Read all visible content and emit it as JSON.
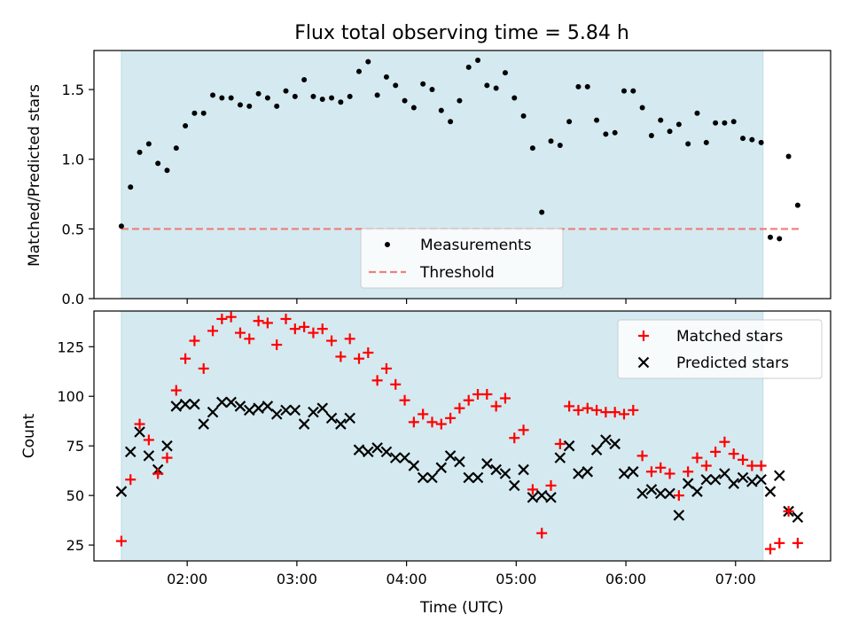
{
  "colors": {
    "shade": "#d4eaf0",
    "measurement": "#000000",
    "threshold": "#f08080",
    "matched": "#ff0000",
    "predicted": "#000000"
  },
  "chart_data": [
    {
      "type": "scatter",
      "title": "Flux total observing time = 5.84 h",
      "ylabel": "Matched/Predicted stars",
      "xlim": [
        "01:09",
        "07:52"
      ],
      "ylim": [
        0,
        1.78
      ],
      "yticks": [
        "0.0",
        "0.5",
        "1.0",
        "1.5"
      ],
      "shaded_interval": [
        "01:24",
        "07:15"
      ],
      "legend": {
        "position": "lower center",
        "entries": [
          "Measurements",
          "Threshold"
        ]
      },
      "threshold": {
        "name": "Threshold",
        "y": 0.5,
        "x": [
          "01:24",
          "07:35"
        ]
      },
      "series": [
        {
          "name": "Measurements",
          "points": [
            [
              "01:24",
              0.52
            ],
            [
              "01:29",
              0.8
            ],
            [
              "01:34",
              1.05
            ],
            [
              "01:39",
              1.11
            ],
            [
              "01:44",
              0.97
            ],
            [
              "01:49",
              0.92
            ],
            [
              "01:54",
              1.08
            ],
            [
              "01:59",
              1.24
            ],
            [
              "02:04",
              1.33
            ],
            [
              "02:09",
              1.33
            ],
            [
              "02:14",
              1.46
            ],
            [
              "02:19",
              1.44
            ],
            [
              "02:24",
              1.44
            ],
            [
              "02:29",
              1.39
            ],
            [
              "02:34",
              1.38
            ],
            [
              "02:39",
              1.47
            ],
            [
              "02:44",
              1.44
            ],
            [
              "02:49",
              1.38
            ],
            [
              "02:54",
              1.49
            ],
            [
              "02:59",
              1.45
            ],
            [
              "03:04",
              1.57
            ],
            [
              "03:09",
              1.45
            ],
            [
              "03:14",
              1.43
            ],
            [
              "03:19",
              1.44
            ],
            [
              "03:24",
              1.41
            ],
            [
              "03:29",
              1.45
            ],
            [
              "03:34",
              1.63
            ],
            [
              "03:39",
              1.7
            ],
            [
              "03:44",
              1.46
            ],
            [
              "03:49",
              1.59
            ],
            [
              "03:54",
              1.53
            ],
            [
              "03:59",
              1.42
            ],
            [
              "04:04",
              1.37
            ],
            [
              "04:09",
              1.54
            ],
            [
              "04:14",
              1.5
            ],
            [
              "04:19",
              1.35
            ],
            [
              "04:24",
              1.27
            ],
            [
              "04:29",
              1.42
            ],
            [
              "04:34",
              1.66
            ],
            [
              "04:39",
              1.71
            ],
            [
              "04:44",
              1.53
            ],
            [
              "04:49",
              1.51
            ],
            [
              "04:54",
              1.62
            ],
            [
              "04:59",
              1.44
            ],
            [
              "05:04",
              1.31
            ],
            [
              "05:09",
              1.08
            ],
            [
              "05:14",
              0.62
            ],
            [
              "05:19",
              1.13
            ],
            [
              "05:24",
              1.1
            ],
            [
              "05:29",
              1.27
            ],
            [
              "05:34",
              1.52
            ],
            [
              "05:39",
              1.52
            ],
            [
              "05:44",
              1.28
            ],
            [
              "05:49",
              1.18
            ],
            [
              "05:54",
              1.19
            ],
            [
              "05:59",
              1.49
            ],
            [
              "06:04",
              1.49
            ],
            [
              "06:09",
              1.37
            ],
            [
              "06:14",
              1.17
            ],
            [
              "06:19",
              1.28
            ],
            [
              "06:24",
              1.2
            ],
            [
              "06:29",
              1.25
            ],
            [
              "06:34",
              1.11
            ],
            [
              "06:39",
              1.33
            ],
            [
              "06:44",
              1.12
            ],
            [
              "06:49",
              1.26
            ],
            [
              "06:54",
              1.26
            ],
            [
              "06:59",
              1.27
            ],
            [
              "07:04",
              1.15
            ],
            [
              "07:09",
              1.14
            ],
            [
              "07:14",
              1.12
            ],
            [
              "07:19",
              0.44
            ],
            [
              "07:24",
              0.43
            ],
            [
              "07:29",
              1.02
            ],
            [
              "07:34",
              0.67
            ]
          ]
        }
      ]
    },
    {
      "type": "scatter",
      "xlabel": "Time (UTC)",
      "ylabel": "Count",
      "xlim": [
        "01:09",
        "07:52"
      ],
      "ylim": [
        17,
        143
      ],
      "xticks": [
        "02:00",
        "03:00",
        "04:00",
        "05:00",
        "06:00",
        "07:00"
      ],
      "yticks": [
        25,
        50,
        75,
        100,
        125
      ],
      "shaded_interval": [
        "01:24",
        "07:15"
      ],
      "legend": {
        "position": "upper right",
        "entries": [
          "Matched stars",
          "Predicted stars"
        ]
      },
      "series": [
        {
          "name": "Matched stars",
          "marker": "+",
          "points": [
            [
              "01:24",
              27
            ],
            [
              "01:29",
              58
            ],
            [
              "01:34",
              86
            ],
            [
              "01:39",
              78
            ],
            [
              "01:44",
              61
            ],
            [
              "01:49",
              69
            ],
            [
              "01:54",
              103
            ],
            [
              "01:59",
              119
            ],
            [
              "02:04",
              128
            ],
            [
              "02:09",
              114
            ],
            [
              "02:14",
              133
            ],
            [
              "02:19",
              139
            ],
            [
              "02:24",
              140
            ],
            [
              "02:29",
              132
            ],
            [
              "02:34",
              129
            ],
            [
              "02:39",
              138
            ],
            [
              "02:44",
              137
            ],
            [
              "02:49",
              126
            ],
            [
              "02:54",
              139
            ],
            [
              "02:59",
              134
            ],
            [
              "03:04",
              135
            ],
            [
              "03:09",
              132
            ],
            [
              "03:14",
              134
            ],
            [
              "03:19",
              128
            ],
            [
              "03:24",
              120
            ],
            [
              "03:29",
              129
            ],
            [
              "03:34",
              119
            ],
            [
              "03:39",
              122
            ],
            [
              "03:44",
              108
            ],
            [
              "03:49",
              114
            ],
            [
              "03:54",
              106
            ],
            [
              "03:59",
              98
            ],
            [
              "04:04",
              87
            ],
            [
              "04:09",
              91
            ],
            [
              "04:14",
              87
            ],
            [
              "04:19",
              86
            ],
            [
              "04:24",
              89
            ],
            [
              "04:29",
              94
            ],
            [
              "04:34",
              98
            ],
            [
              "04:39",
              101
            ],
            [
              "04:44",
              101
            ],
            [
              "04:49",
              95
            ],
            [
              "04:54",
              99
            ],
            [
              "04:59",
              79
            ],
            [
              "05:04",
              83
            ],
            [
              "05:09",
              53
            ],
            [
              "05:14",
              31
            ],
            [
              "05:19",
              55
            ],
            [
              "05:24",
              76
            ],
            [
              "05:29",
              95
            ],
            [
              "05:34",
              93
            ],
            [
              "05:39",
              94
            ],
            [
              "05:44",
              93
            ],
            [
              "05:49",
              92
            ],
            [
              "05:54",
              92
            ],
            [
              "05:59",
              91
            ],
            [
              "06:04",
              93
            ],
            [
              "06:09",
              70
            ],
            [
              "06:14",
              62
            ],
            [
              "06:19",
              64
            ],
            [
              "06:24",
              61
            ],
            [
              "06:29",
              50
            ],
            [
              "06:34",
              62
            ],
            [
              "06:39",
              69
            ],
            [
              "06:44",
              65
            ],
            [
              "06:49",
              72
            ],
            [
              "06:54",
              77
            ],
            [
              "06:59",
              71
            ],
            [
              "07:04",
              68
            ],
            [
              "07:09",
              65
            ],
            [
              "07:14",
              65
            ],
            [
              "07:19",
              23
            ],
            [
              "07:24",
              26
            ],
            [
              "07:29",
              42
            ],
            [
              "07:34",
              26
            ]
          ]
        },
        {
          "name": "Predicted stars",
          "marker": "x",
          "points": [
            [
              "01:24",
              52
            ],
            [
              "01:29",
              72
            ],
            [
              "01:34",
              82
            ],
            [
              "01:39",
              70
            ],
            [
              "01:44",
              63
            ],
            [
              "01:49",
              75
            ],
            [
              "01:54",
              95
            ],
            [
              "01:59",
              96
            ],
            [
              "02:04",
              96
            ],
            [
              "02:09",
              86
            ],
            [
              "02:14",
              92
            ],
            [
              "02:19",
              97
            ],
            [
              "02:24",
              97
            ],
            [
              "02:29",
              95
            ],
            [
              "02:34",
              93
            ],
            [
              "02:39",
              94
            ],
            [
              "02:44",
              95
            ],
            [
              "02:49",
              91
            ],
            [
              "02:54",
              93
            ],
            [
              "02:59",
              93
            ],
            [
              "03:04",
              86
            ],
            [
              "03:09",
              92
            ],
            [
              "03:14",
              94
            ],
            [
              "03:19",
              89
            ],
            [
              "03:24",
              86
            ],
            [
              "03:29",
              89
            ],
            [
              "03:34",
              73
            ],
            [
              "03:39",
              72
            ],
            [
              "03:44",
              74
            ],
            [
              "03:49",
              72
            ],
            [
              "03:54",
              69
            ],
            [
              "03:59",
              69
            ],
            [
              "04:04",
              65
            ],
            [
              "04:09",
              59
            ],
            [
              "04:14",
              59
            ],
            [
              "04:19",
              64
            ],
            [
              "04:24",
              70
            ],
            [
              "04:29",
              67
            ],
            [
              "04:34",
              59
            ],
            [
              "04:39",
              59
            ],
            [
              "04:44",
              66
            ],
            [
              "04:49",
              63
            ],
            [
              "04:54",
              61
            ],
            [
              "04:59",
              55
            ],
            [
              "05:04",
              63
            ],
            [
              "05:09",
              49
            ],
            [
              "05:14",
              50
            ],
            [
              "05:19",
              49
            ],
            [
              "05:24",
              69
            ],
            [
              "05:29",
              75
            ],
            [
              "05:34",
              61
            ],
            [
              "05:39",
              62
            ],
            [
              "05:44",
              73
            ],
            [
              "05:49",
              78
            ],
            [
              "05:54",
              76
            ],
            [
              "05:59",
              61
            ],
            [
              "06:04",
              62
            ],
            [
              "06:09",
              51
            ],
            [
              "06:14",
              53
            ],
            [
              "06:19",
              51
            ],
            [
              "06:24",
              51
            ],
            [
              "06:29",
              40
            ],
            [
              "06:34",
              56
            ],
            [
              "06:39",
              52
            ],
            [
              "06:44",
              58
            ],
            [
              "06:49",
              58
            ],
            [
              "06:54",
              61
            ],
            [
              "06:59",
              56
            ],
            [
              "07:04",
              59
            ],
            [
              "07:09",
              57
            ],
            [
              "07:14",
              58
            ],
            [
              "07:19",
              52
            ],
            [
              "07:24",
              60
            ],
            [
              "07:29",
              42
            ],
            [
              "07:34",
              39
            ]
          ]
        }
      ]
    }
  ]
}
